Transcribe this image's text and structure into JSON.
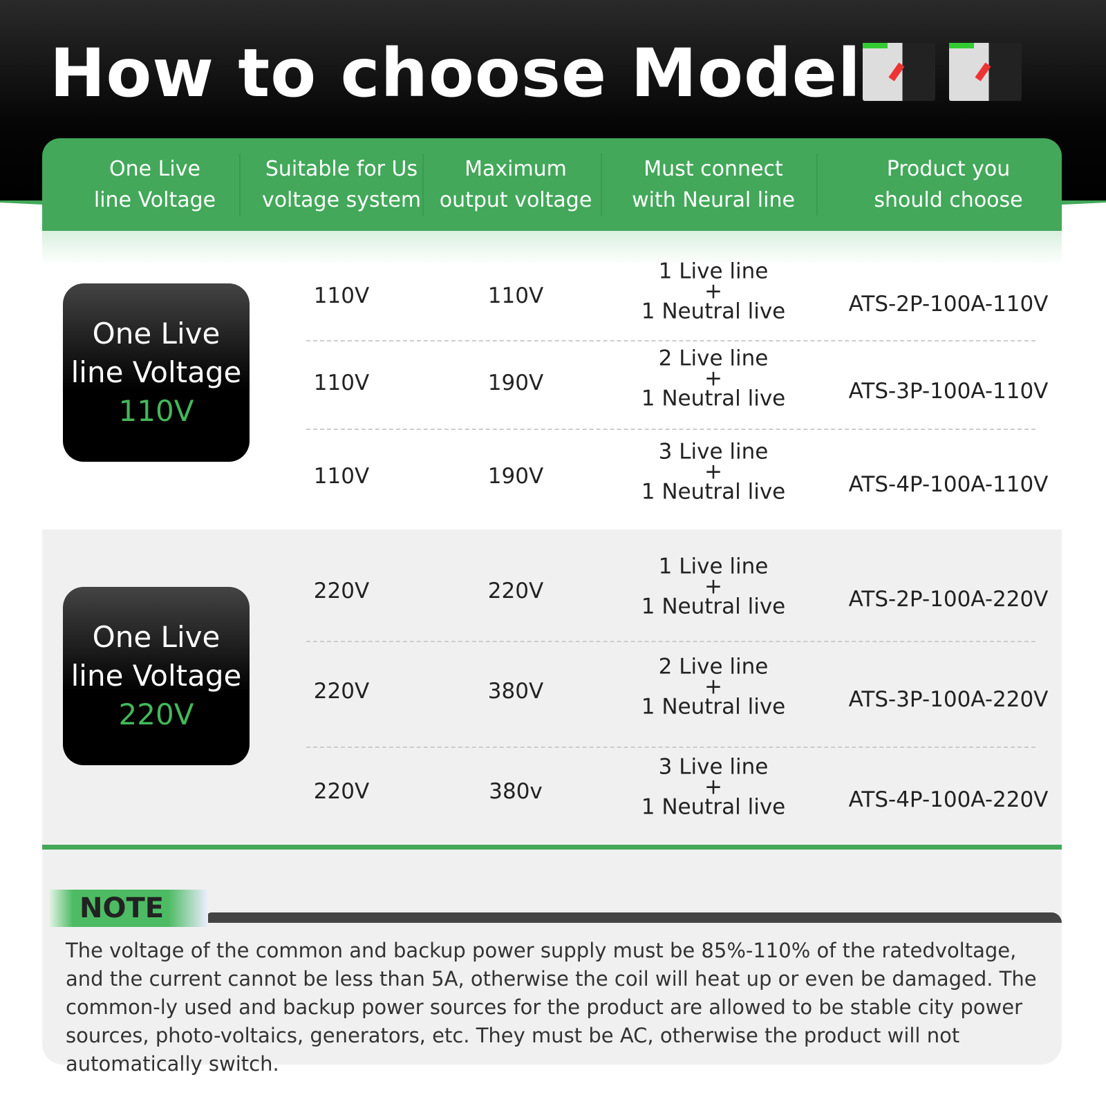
{
  "title": "How to choose Model ?",
  "colors": {
    "accent": "#43a85a",
    "voltage": "#43b85a"
  },
  "headers": [
    "One Live\nline Voltage",
    "Suitable for Us\nvoltage system",
    "Maximum\noutput voltage",
    "Must connect\nwith Neural line",
    "Product you\nshould choose"
  ],
  "groups": [
    {
      "badge": [
        "One Live",
        "line Voltage"
      ],
      "voltage": "110V",
      "rows": [
        {
          "system": "110V",
          "output": "110V",
          "live": "1 Live line",
          "plus": "+",
          "neutral": "1 Neutral live",
          "product": "ATS-2P-100A-110V"
        },
        {
          "system": "110V",
          "output": "190V",
          "live": "2 Live line",
          "plus": "+",
          "neutral": "1 Neutral live",
          "product": "ATS-3P-100A-110V"
        },
        {
          "system": "110V",
          "output": "190V",
          "live": "3 Live line",
          "plus": "+",
          "neutral": "1 Neutral live",
          "product": "ATS-4P-100A-110V"
        }
      ]
    },
    {
      "badge": [
        "One Live",
        "line Voltage"
      ],
      "voltage": "220V",
      "rows": [
        {
          "system": "220V",
          "output": "220V",
          "live": "1 Live line",
          "plus": "+",
          "neutral": "1 Neutral live",
          "product": "ATS-2P-100A-220V"
        },
        {
          "system": "220V",
          "output": "380V",
          "live": "2 Live line",
          "plus": "+",
          "neutral": "1 Neutral live",
          "product": "ATS-3P-100A-220V"
        },
        {
          "system": "220V",
          "output": "380v",
          "live": "3 Live line",
          "plus": "+",
          "neutral": "1 Neutral live",
          "product": "ATS-4P-100A-220V"
        }
      ]
    }
  ],
  "note": {
    "label": "NOTE",
    "text": "The voltage of the common and backup power supply must be 85%-110% of the ratedvoltage, and the current cannot be less than 5A, otherwise the coil will heat up or even be damaged. The common-ly used and backup power sources for the product are allowed to be stable city power sources, photo-voltaics, generators, etc. They must be AC, otherwise the product will not automatically switch."
  }
}
